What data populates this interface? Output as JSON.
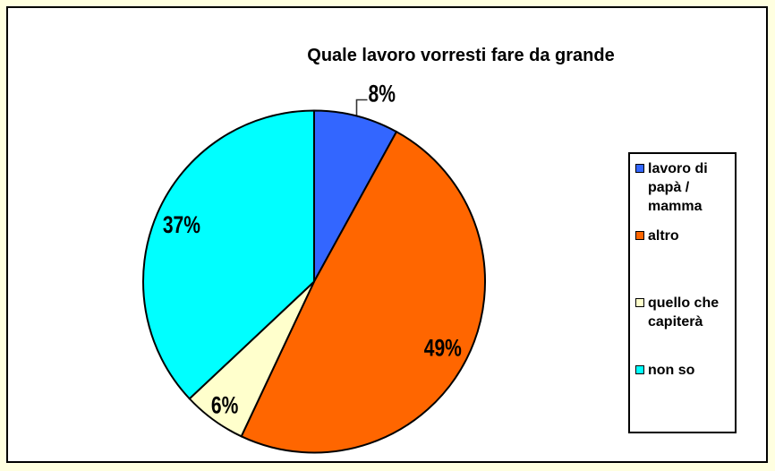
{
  "page": {
    "background_color": "#FFFFE0",
    "chart_background": "#FFFFFF",
    "border_color": "#000000"
  },
  "chart_data": {
    "type": "pie",
    "title": "Quale lavoro vorresti fare da grande",
    "legend_position": "right",
    "start_angle_deg": 0,
    "direction": "clockwise",
    "outline_color": "#000000",
    "slices": [
      {
        "label": "lavoro di papà / mamma",
        "label_lines": [
          "lavoro di",
          "papà /",
          "mamma"
        ],
        "value": 8,
        "display": "8%",
        "color": "#3366FF",
        "label_placement": "outside-callout"
      },
      {
        "label": "altro",
        "label_lines": [
          "altro"
        ],
        "value": 49,
        "display": "49%",
        "color": "#FF6600",
        "label_placement": "inside"
      },
      {
        "label": "quello che capiterà",
        "label_lines": [
          "quello che",
          "capiterà"
        ],
        "value": 6,
        "display": "6%",
        "color": "#FFFFCC",
        "label_placement": "inside"
      },
      {
        "label": "non so",
        "label_lines": [
          "non so"
        ],
        "value": 37,
        "display": "37%",
        "color": "#00FFFF",
        "label_placement": "inside"
      }
    ]
  }
}
